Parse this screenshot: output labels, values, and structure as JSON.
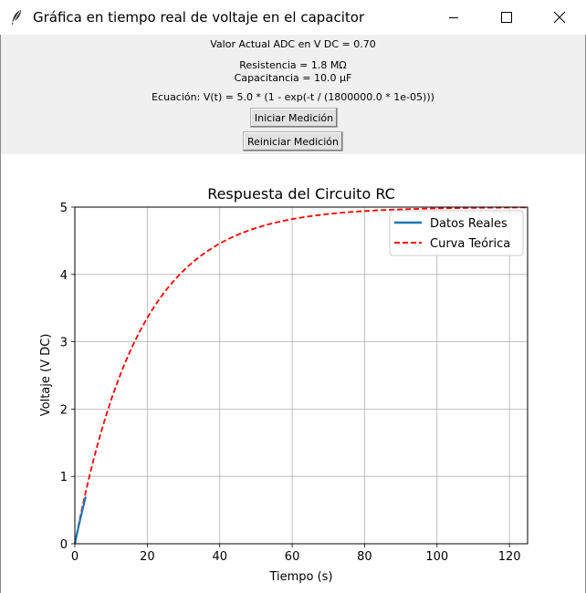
{
  "window": {
    "title": "Gráfica en tiempo real de voltaje en el capacitor",
    "app_icon": "feather-icon",
    "controls": [
      "minimize-icon",
      "maximize-icon",
      "close-icon"
    ]
  },
  "panel": {
    "adc_label": "Valor Actual ADC en V DC = 0.70",
    "resistance_label": "Resistencia = 1.8 MΩ",
    "capacitance_label": "Capacitancia = 10.0 µF",
    "equation_label": "Ecuación: V(t) = 5.0 * (1 - exp(-t / (1800000.0 * 1e-05)))",
    "start_button": "Iniciar Medición",
    "reset_button": "Reiniciar Medición"
  },
  "chart_data": {
    "type": "line",
    "title": "Respuesta del Circuito RC",
    "xlabel": "Tiempo (s)",
    "ylabel": "Voltaje (V DC)",
    "xlim": [
      0,
      125
    ],
    "ylim": [
      0,
      5
    ],
    "xticks": [
      0,
      20,
      40,
      60,
      80,
      100,
      120
    ],
    "yticks": [
      0,
      1,
      2,
      3,
      4,
      5
    ],
    "grid": true,
    "legend_position": "upper-right",
    "series": [
      {
        "name": "Datos Reales",
        "style": "solid",
        "color": "#1f77b4",
        "x": [
          0,
          1,
          2,
          3
        ],
        "y": [
          0,
          0.25,
          0.48,
          0.7
        ]
      },
      {
        "name": "Curva Teórica",
        "style": "dashed",
        "color": "#ff0000",
        "function": "5.0 * (1 - exp(-t / 18))",
        "V0": 5.0,
        "tau": 18,
        "x_range": [
          0,
          125
        ]
      }
    ]
  }
}
